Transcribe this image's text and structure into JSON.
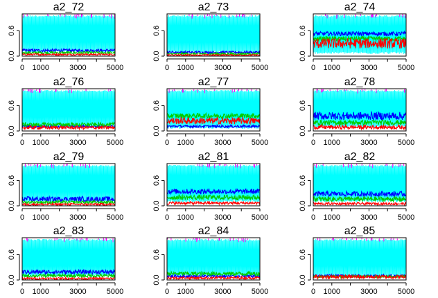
{
  "chart_data": {
    "type": "line",
    "description_type": "MCMC trace plots, 4 chains per panel",
    "layout": {
      "rows": 4,
      "cols": 3
    },
    "xlim": [
      0,
      5000
    ],
    "ylim": [
      0,
      1
    ],
    "xticks": [
      0,
      1000,
      3000,
      5000
    ],
    "xtick_labels": [
      "0",
      "1000",
      "3000",
      "5000"
    ],
    "yticks": [
      0.0,
      0.6
    ],
    "ytick_labels": [
      "0.0",
      "0.6"
    ],
    "series_colors": {
      "cyan": "#00FFFF",
      "blue": "#0000FF",
      "green": "#00CC00",
      "red": "#FF0000",
      "magenta": "#FF00FF"
    },
    "panels": [
      {
        "title": "a2_72",
        "bands": {
          "cyan": [
            0.08,
            0.97
          ],
          "blue": [
            0.1,
            0.17
          ],
          "green": [
            0.05,
            0.11
          ],
          "red": [
            0.02,
            0.06
          ]
        }
      },
      {
        "title": "a2_73",
        "bands": {
          "cyan": [
            0.07,
            0.97
          ],
          "blue": [
            0.06,
            0.12
          ],
          "green": [
            0.03,
            0.08
          ],
          "red": [
            0.01,
            0.04
          ]
        }
      },
      {
        "title": "a2_74",
        "bands": {
          "cyan": [
            0.05,
            0.97
          ],
          "blue": [
            0.48,
            0.58
          ],
          "green": [
            0.35,
            0.47
          ],
          "red": [
            0.18,
            0.42
          ]
        }
      },
      {
        "title": "a2_76",
        "bands": {
          "cyan": [
            0.08,
            0.97
          ],
          "blue": [
            0.08,
            0.14
          ],
          "green": [
            0.1,
            0.2
          ],
          "red": [
            0.04,
            0.12
          ]
        }
      },
      {
        "title": "a2_77",
        "bands": {
          "cyan": [
            0.05,
            0.97
          ],
          "blue": [
            0.08,
            0.14
          ],
          "green": [
            0.3,
            0.42
          ],
          "red": [
            0.16,
            0.32
          ]
        }
      },
      {
        "title": "a2_78",
        "bands": {
          "cyan": [
            0.08,
            0.97
          ],
          "blue": [
            0.26,
            0.45
          ],
          "green": [
            0.14,
            0.26
          ],
          "red": [
            0.04,
            0.14
          ]
        }
      },
      {
        "title": "a2_79",
        "bands": {
          "cyan": [
            0.08,
            0.97
          ],
          "blue": [
            0.1,
            0.22
          ],
          "green": [
            0.05,
            0.12
          ],
          "red": [
            0.01,
            0.06
          ]
        }
      },
      {
        "title": "a2_81",
        "bands": {
          "cyan": [
            0.08,
            0.97
          ],
          "blue": [
            0.28,
            0.4
          ],
          "green": [
            0.14,
            0.26
          ],
          "red": [
            0.03,
            0.1
          ]
        }
      },
      {
        "title": "a2_82",
        "bands": {
          "cyan": [
            0.08,
            0.97
          ],
          "blue": [
            0.22,
            0.34
          ],
          "green": [
            0.1,
            0.22
          ],
          "red": [
            0.02,
            0.08
          ]
        }
      },
      {
        "title": "a2_83",
        "bands": {
          "cyan": [
            0.08,
            0.97
          ],
          "blue": [
            0.14,
            0.24
          ],
          "green": [
            0.06,
            0.14
          ],
          "red": [
            0.01,
            0.06
          ]
        }
      },
      {
        "title": "a2_84",
        "bands": {
          "cyan": [
            0.08,
            0.97
          ],
          "blue": [
            0.06,
            0.12
          ],
          "green": [
            0.1,
            0.2
          ],
          "red": [
            0.02,
            0.08
          ]
        }
      },
      {
        "title": "a2_85",
        "bands": {
          "cyan": [
            0.08,
            0.97
          ],
          "blue": [
            0.07,
            0.13
          ],
          "green": [
            0.05,
            0.11
          ],
          "red": [
            0.03,
            0.12
          ]
        }
      }
    ]
  }
}
